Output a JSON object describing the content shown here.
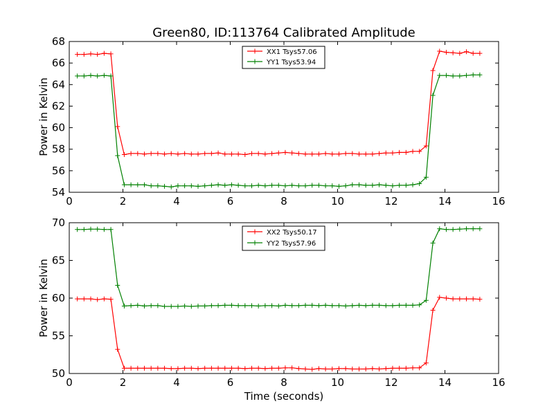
{
  "chart_data": [
    {
      "type": "line",
      "title": "Green80, ID:113764 Calibrated Amplitude",
      "xlabel": "",
      "ylabel": "Power in Kelvin",
      "xlim": [
        0,
        16
      ],
      "ylim": [
        54,
        68
      ],
      "xticks": [
        "0",
        "2",
        "4",
        "6",
        "8",
        "10",
        "12",
        "14",
        "16"
      ],
      "yticks": [
        "54",
        "56",
        "58",
        "60",
        "62",
        "64",
        "66",
        "68"
      ],
      "grid": false,
      "legend_position": "top-center",
      "x": [
        0.3,
        0.55,
        0.8,
        1.05,
        1.3,
        1.55,
        1.8,
        2.05,
        2.3,
        2.55,
        2.8,
        3.05,
        3.3,
        3.55,
        3.8,
        4.05,
        4.3,
        4.55,
        4.8,
        5.05,
        5.3,
        5.55,
        5.8,
        6.05,
        6.3,
        6.55,
        6.8,
        7.05,
        7.3,
        7.55,
        7.8,
        8.05,
        8.3,
        8.55,
        8.8,
        9.05,
        9.3,
        9.55,
        9.8,
        10.05,
        10.3,
        10.55,
        10.8,
        11.05,
        11.3,
        11.55,
        11.8,
        12.05,
        12.3,
        12.55,
        12.8,
        13.05,
        13.3,
        13.55,
        13.8,
        14.05,
        14.3,
        14.55,
        14.8,
        15.05,
        15.3
      ],
      "series": [
        {
          "name": "XX1 Tsys57.06",
          "color": "#ff0000",
          "values": [
            66.8,
            66.8,
            66.85,
            66.8,
            66.9,
            66.85,
            60.1,
            57.5,
            57.6,
            57.6,
            57.55,
            57.6,
            57.6,
            57.55,
            57.6,
            57.55,
            57.6,
            57.55,
            57.55,
            57.6,
            57.6,
            57.65,
            57.55,
            57.55,
            57.55,
            57.5,
            57.6,
            57.6,
            57.55,
            57.6,
            57.65,
            57.7,
            57.65,
            57.6,
            57.55,
            57.55,
            57.55,
            57.6,
            57.55,
            57.55,
            57.6,
            57.6,
            57.55,
            57.55,
            57.55,
            57.6,
            57.65,
            57.65,
            57.7,
            57.7,
            57.8,
            57.8,
            58.3,
            65.3,
            67.1,
            67.0,
            66.95,
            66.9,
            67.05,
            66.9,
            66.9
          ]
        },
        {
          "name": "YY1 Tsys53.94",
          "color": "#008000",
          "values": [
            64.8,
            64.8,
            64.85,
            64.8,
            64.85,
            64.8,
            57.4,
            54.7,
            54.7,
            54.7,
            54.7,
            54.6,
            54.6,
            54.55,
            54.5,
            54.6,
            54.6,
            54.6,
            54.55,
            54.6,
            54.65,
            54.7,
            54.65,
            54.7,
            54.65,
            54.6,
            54.6,
            54.65,
            54.6,
            54.65,
            54.65,
            54.6,
            54.65,
            54.6,
            54.6,
            54.65,
            54.65,
            54.6,
            54.6,
            54.55,
            54.6,
            54.7,
            54.7,
            54.65,
            54.65,
            54.7,
            54.65,
            54.6,
            54.65,
            54.65,
            54.7,
            54.8,
            55.4,
            63.0,
            64.85,
            64.85,
            64.8,
            64.8,
            64.85,
            64.9,
            64.9
          ]
        }
      ]
    },
    {
      "type": "line",
      "title": "",
      "xlabel": "Time (seconds)",
      "ylabel": "Power in Kelvin",
      "xlim": [
        0,
        16
      ],
      "ylim": [
        50,
        70
      ],
      "xticks": [
        "0",
        "2",
        "4",
        "6",
        "8",
        "10",
        "12",
        "14",
        "16"
      ],
      "yticks": [
        "50",
        "55",
        "60",
        "65",
        "70"
      ],
      "grid": false,
      "legend_position": "top-center",
      "x": [
        0.3,
        0.55,
        0.8,
        1.05,
        1.3,
        1.55,
        1.8,
        2.05,
        2.3,
        2.55,
        2.8,
        3.05,
        3.3,
        3.55,
        3.8,
        4.05,
        4.3,
        4.55,
        4.8,
        5.05,
        5.3,
        5.55,
        5.8,
        6.05,
        6.3,
        6.55,
        6.8,
        7.05,
        7.3,
        7.55,
        7.8,
        8.05,
        8.3,
        8.55,
        8.8,
        9.05,
        9.3,
        9.55,
        9.8,
        10.05,
        10.3,
        10.55,
        10.8,
        11.05,
        11.3,
        11.55,
        11.8,
        12.05,
        12.3,
        12.55,
        12.8,
        13.05,
        13.3,
        13.55,
        13.8,
        14.05,
        14.3,
        14.55,
        14.8,
        15.05,
        15.3
      ],
      "series": [
        {
          "name": "XX2 Tsys50.17",
          "color": "#ff0000",
          "values": [
            59.9,
            59.9,
            59.9,
            59.8,
            59.9,
            59.85,
            53.2,
            50.7,
            50.7,
            50.7,
            50.7,
            50.7,
            50.7,
            50.7,
            50.65,
            50.65,
            50.7,
            50.7,
            50.65,
            50.7,
            50.7,
            50.7,
            50.7,
            50.7,
            50.7,
            50.65,
            50.7,
            50.7,
            50.65,
            50.7,
            50.7,
            50.75,
            50.75,
            50.65,
            50.6,
            50.55,
            50.65,
            50.6,
            50.6,
            50.65,
            50.65,
            50.6,
            50.6,
            50.6,
            50.65,
            50.6,
            50.65,
            50.7,
            50.7,
            50.7,
            50.75,
            50.75,
            51.4,
            58.4,
            60.1,
            60.0,
            59.9,
            59.9,
            59.9,
            59.9,
            59.85
          ]
        },
        {
          "name": "YY2 Tsys57.96",
          "color": "#008000",
          "values": [
            69.1,
            69.1,
            69.15,
            69.15,
            69.1,
            69.1,
            61.7,
            58.95,
            59.0,
            59.05,
            58.95,
            59.0,
            59.0,
            58.9,
            58.9,
            58.9,
            58.95,
            58.9,
            58.95,
            58.95,
            59.0,
            59.0,
            59.05,
            59.05,
            59.0,
            59.0,
            59.0,
            58.95,
            59.0,
            59.0,
            58.95,
            59.05,
            59.0,
            59.0,
            59.05,
            59.05,
            59.0,
            59.05,
            59.0,
            59.0,
            58.95,
            59.0,
            59.05,
            59.0,
            59.05,
            59.05,
            59.0,
            59.0,
            59.05,
            59.05,
            59.05,
            59.1,
            59.7,
            67.3,
            69.2,
            69.1,
            69.1,
            69.15,
            69.2,
            69.2,
            69.2
          ]
        }
      ]
    }
  ]
}
